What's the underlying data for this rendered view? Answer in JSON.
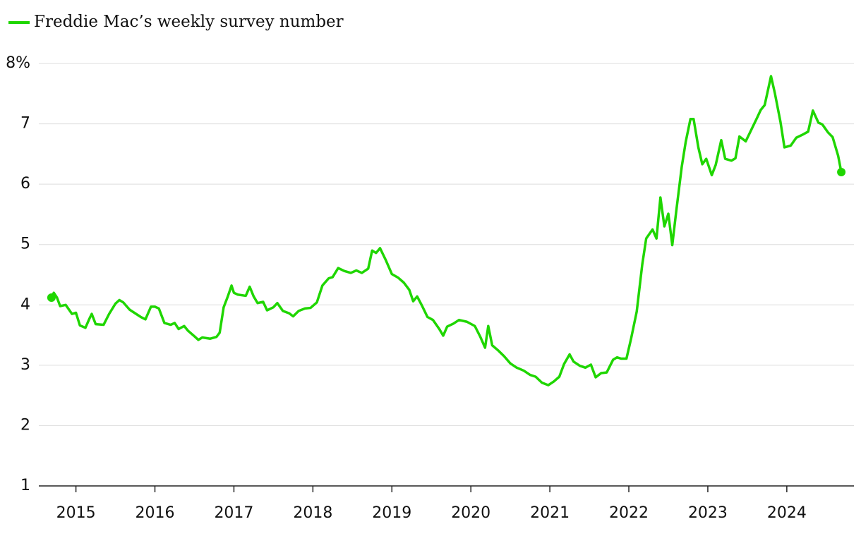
{
  "chart_data": {
    "type": "line",
    "x": [
      2014.69,
      2014.72,
      2014.76,
      2014.8,
      2014.87,
      2014.95,
      2015.0,
      2015.05,
      2015.12,
      2015.17,
      2015.2,
      2015.25,
      2015.35,
      2015.42,
      2015.5,
      2015.55,
      2015.6,
      2015.68,
      2015.75,
      2015.82,
      2015.88,
      2015.95,
      2016.0,
      2016.05,
      2016.12,
      2016.2,
      2016.25,
      2016.3,
      2016.37,
      2016.42,
      2016.5,
      2016.55,
      2016.6,
      2016.7,
      2016.78,
      2016.82,
      2016.87,
      2016.92,
      2016.97,
      2017.0,
      2017.05,
      2017.15,
      2017.2,
      2017.25,
      2017.3,
      2017.37,
      2017.42,
      2017.5,
      2017.55,
      2017.62,
      2017.7,
      2017.75,
      2017.82,
      2017.9,
      2017.97,
      2018.05,
      2018.12,
      2018.2,
      2018.25,
      2018.32,
      2018.4,
      2018.48,
      2018.55,
      2018.62,
      2018.7,
      2018.75,
      2018.8,
      2018.85,
      2018.92,
      2019.0,
      2019.08,
      2019.15,
      2019.22,
      2019.27,
      2019.32,
      2019.38,
      2019.45,
      2019.52,
      2019.6,
      2019.65,
      2019.7,
      2019.78,
      2019.85,
      2019.95,
      2020.05,
      2020.12,
      2020.18,
      2020.22,
      2020.27,
      2020.35,
      2020.42,
      2020.5,
      2020.58,
      2020.67,
      2020.75,
      2020.82,
      2020.9,
      2020.98,
      2021.05,
      2021.12,
      2021.18,
      2021.25,
      2021.3,
      2021.38,
      2021.45,
      2021.52,
      2021.58,
      2021.65,
      2021.72,
      2021.8,
      2021.85,
      2021.9,
      2021.97,
      2022.03,
      2022.1,
      2022.17,
      2022.22,
      2022.3,
      2022.35,
      2022.4,
      2022.45,
      2022.5,
      2022.55,
      2022.6,
      2022.67,
      2022.72,
      2022.78,
      2022.82,
      2022.88,
      2022.93,
      2022.98,
      2023.05,
      2023.1,
      2023.17,
      2023.22,
      2023.3,
      2023.35,
      2023.4,
      2023.48,
      2023.55,
      2023.62,
      2023.67,
      2023.72,
      2023.8,
      2023.85,
      2023.92,
      2023.97,
      2024.05,
      2024.12,
      2024.2,
      2024.27,
      2024.33,
      2024.4,
      2024.45,
      2024.52,
      2024.58,
      2024.65,
      2024.69
    ],
    "series": [
      {
        "name": "Freddie Mac’s weekly survey number",
        "color": "#1fd600",
        "values": [
          4.12,
          4.2,
          4.12,
          3.98,
          4.0,
          3.85,
          3.87,
          3.66,
          3.62,
          3.77,
          3.85,
          3.68,
          3.67,
          3.85,
          4.02,
          4.08,
          4.04,
          3.92,
          3.86,
          3.8,
          3.76,
          3.97,
          3.97,
          3.94,
          3.7,
          3.67,
          3.7,
          3.6,
          3.65,
          3.57,
          3.48,
          3.42,
          3.46,
          3.44,
          3.47,
          3.54,
          3.96,
          4.13,
          4.32,
          4.2,
          4.17,
          4.15,
          4.3,
          4.14,
          4.03,
          4.05,
          3.91,
          3.96,
          4.03,
          3.9,
          3.86,
          3.81,
          3.9,
          3.94,
          3.95,
          4.04,
          4.32,
          4.44,
          4.46,
          4.61,
          4.56,
          4.53,
          4.57,
          4.53,
          4.6,
          4.9,
          4.86,
          4.94,
          4.75,
          4.51,
          4.45,
          4.37,
          4.25,
          4.06,
          4.14,
          3.99,
          3.8,
          3.75,
          3.6,
          3.49,
          3.64,
          3.69,
          3.75,
          3.72,
          3.65,
          3.47,
          3.29,
          3.65,
          3.33,
          3.24,
          3.15,
          3.03,
          2.96,
          2.91,
          2.84,
          2.81,
          2.71,
          2.67,
          2.73,
          2.81,
          3.02,
          3.18,
          3.06,
          2.99,
          2.96,
          3.01,
          2.8,
          2.87,
          2.88,
          3.09,
          3.13,
          3.11,
          3.11,
          3.45,
          3.89,
          4.67,
          5.1,
          5.25,
          5.1,
          5.78,
          5.3,
          5.51,
          4.99,
          5.55,
          6.29,
          6.7,
          7.08,
          7.08,
          6.61,
          6.33,
          6.42,
          6.15,
          6.32,
          6.73,
          6.42,
          6.39,
          6.43,
          6.79,
          6.71,
          6.9,
          7.09,
          7.23,
          7.31,
          7.79,
          7.5,
          7.03,
          6.61,
          6.64,
          6.77,
          6.82,
          6.87,
          7.22,
          7.02,
          6.99,
          6.86,
          6.78,
          6.47,
          6.2
        ]
      }
    ],
    "xlim": [
      2014.53,
      2024.85
    ],
    "xticks": [
      2015,
      2016,
      2017,
      2018,
      2019,
      2020,
      2021,
      2022,
      2023,
      2024
    ],
    "ylim": [
      1,
      8
    ],
    "yticks": [
      1,
      2,
      3,
      4,
      5,
      6,
      7,
      {
        "value": 8,
        "label": "8%"
      }
    ],
    "grid": true
  }
}
